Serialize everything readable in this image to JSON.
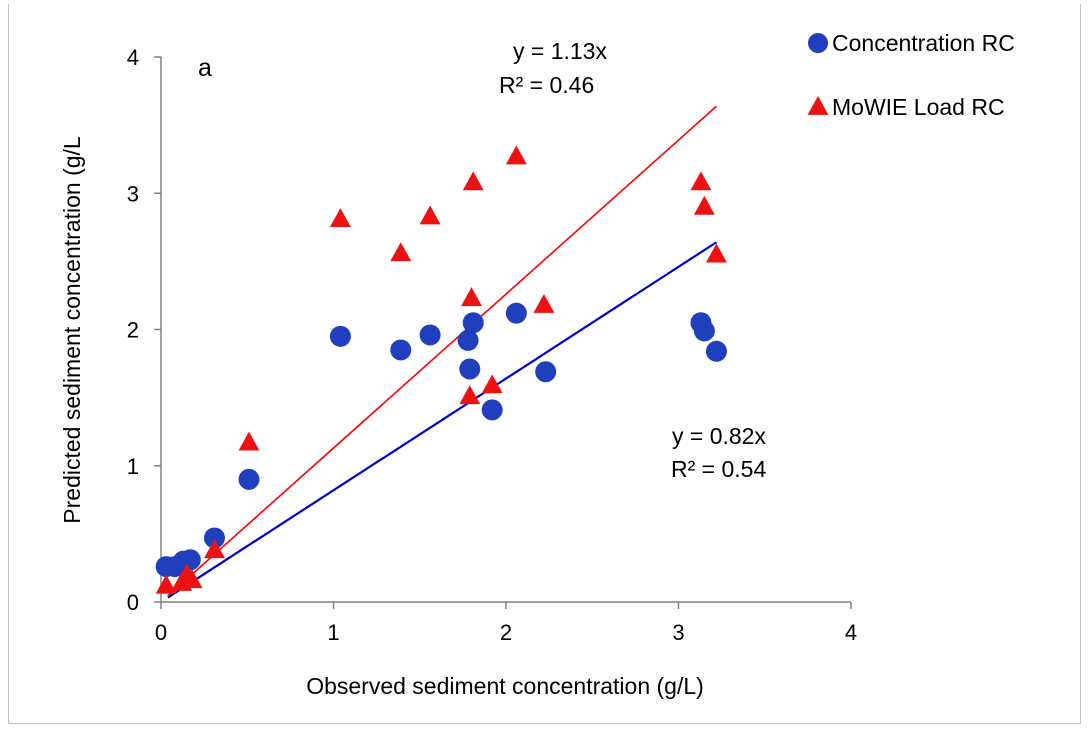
{
  "chart_data": {
    "type": "scatter",
    "panel_label": "a",
    "xlabel": "Observed sediment concentration (g/L)",
    "ylabel": "Predicted sediment concentration (g/L",
    "xlim": [
      0,
      4
    ],
    "ylim": [
      0,
      4
    ],
    "xticks": [
      "0",
      "1",
      "2",
      "3",
      "4"
    ],
    "yticks": [
      "0",
      "1",
      "2",
      "3",
      "4"
    ],
    "grid": false,
    "legend_position": "top-right",
    "series": [
      {
        "name": "Concentration RC",
        "marker": "circle",
        "color": "#1f3fbf",
        "points": [
          [
            0.03,
            0.26
          ],
          [
            0.08,
            0.26
          ],
          [
            0.13,
            0.3
          ],
          [
            0.17,
            0.31
          ],
          [
            0.31,
            0.47
          ],
          [
            0.51,
            0.9
          ],
          [
            1.04,
            1.95
          ],
          [
            1.39,
            1.85
          ],
          [
            1.56,
            1.96
          ],
          [
            1.78,
            1.92
          ],
          [
            1.79,
            1.71
          ],
          [
            1.81,
            2.05
          ],
          [
            1.92,
            1.41
          ],
          [
            2.06,
            2.12
          ],
          [
            2.23,
            1.69
          ],
          [
            3.13,
            2.05
          ],
          [
            3.15,
            1.99
          ],
          [
            3.22,
            1.84
          ]
        ],
        "trendline": {
          "slope": 0.82,
          "equation": "y = 0.82x",
          "r2": "R² = 0.54",
          "color": "#0000cc",
          "x_range": [
            0.04,
            3.22
          ]
        }
      },
      {
        "name": "MoWIE Load RC",
        "marker": "triangle",
        "color": "#ee1111",
        "points": [
          [
            0.03,
            0.12
          ],
          [
            0.12,
            0.14
          ],
          [
            0.14,
            0.17
          ],
          [
            0.15,
            0.2
          ],
          [
            0.18,
            0.16
          ],
          [
            0.31,
            0.38
          ],
          [
            0.51,
            1.17
          ],
          [
            1.04,
            2.81
          ],
          [
            1.39,
            2.56
          ],
          [
            1.56,
            2.83
          ],
          [
            1.79,
            1.51
          ],
          [
            1.8,
            2.23
          ],
          [
            1.81,
            3.08
          ],
          [
            1.92,
            1.59
          ],
          [
            2.06,
            3.27
          ],
          [
            2.22,
            2.18
          ],
          [
            3.13,
            3.08
          ],
          [
            3.15,
            2.9
          ],
          [
            3.22,
            2.55
          ]
        ],
        "trendline": {
          "slope": 1.13,
          "equation": "y = 1.13x",
          "r2": "R² = 0.46",
          "color": "#ff0000",
          "x_range": [
            0.04,
            3.22
          ]
        }
      }
    ]
  }
}
